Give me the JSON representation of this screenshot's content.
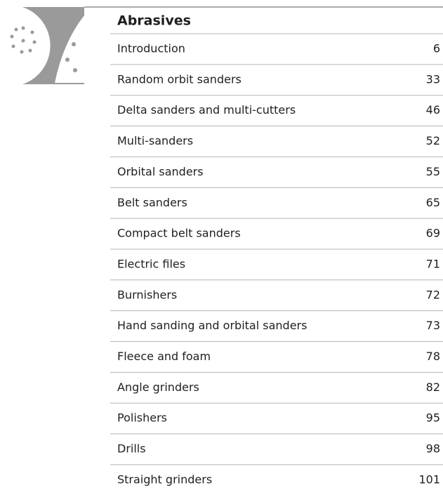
{
  "header": {
    "title": "Abrasives"
  },
  "entries": [
    {
      "label": "Introduction",
      "page": 6
    },
    {
      "label": "Random orbit sanders",
      "page": 33
    },
    {
      "label": "Delta sanders and multi-cutters",
      "page": 46
    },
    {
      "label": "Multi-sanders",
      "page": 52
    },
    {
      "label": "Orbital sanders",
      "page": 55
    },
    {
      "label": "Belt sanders",
      "page": 65
    },
    {
      "label": "Compact belt sanders",
      "page": 69
    },
    {
      "label": "Electric files",
      "page": 71
    },
    {
      "label": "Burnishers",
      "page": 72
    },
    {
      "label": "Hand sanding and orbital sanders",
      "page": 73
    },
    {
      "label": "Fleece and foam",
      "page": 78
    },
    {
      "label": "Angle grinders",
      "page": 82
    },
    {
      "label": "Polishers",
      "page": 95
    },
    {
      "label": "Drills",
      "page": 98
    },
    {
      "label": "Straight grinders",
      "page": 101
    }
  ]
}
